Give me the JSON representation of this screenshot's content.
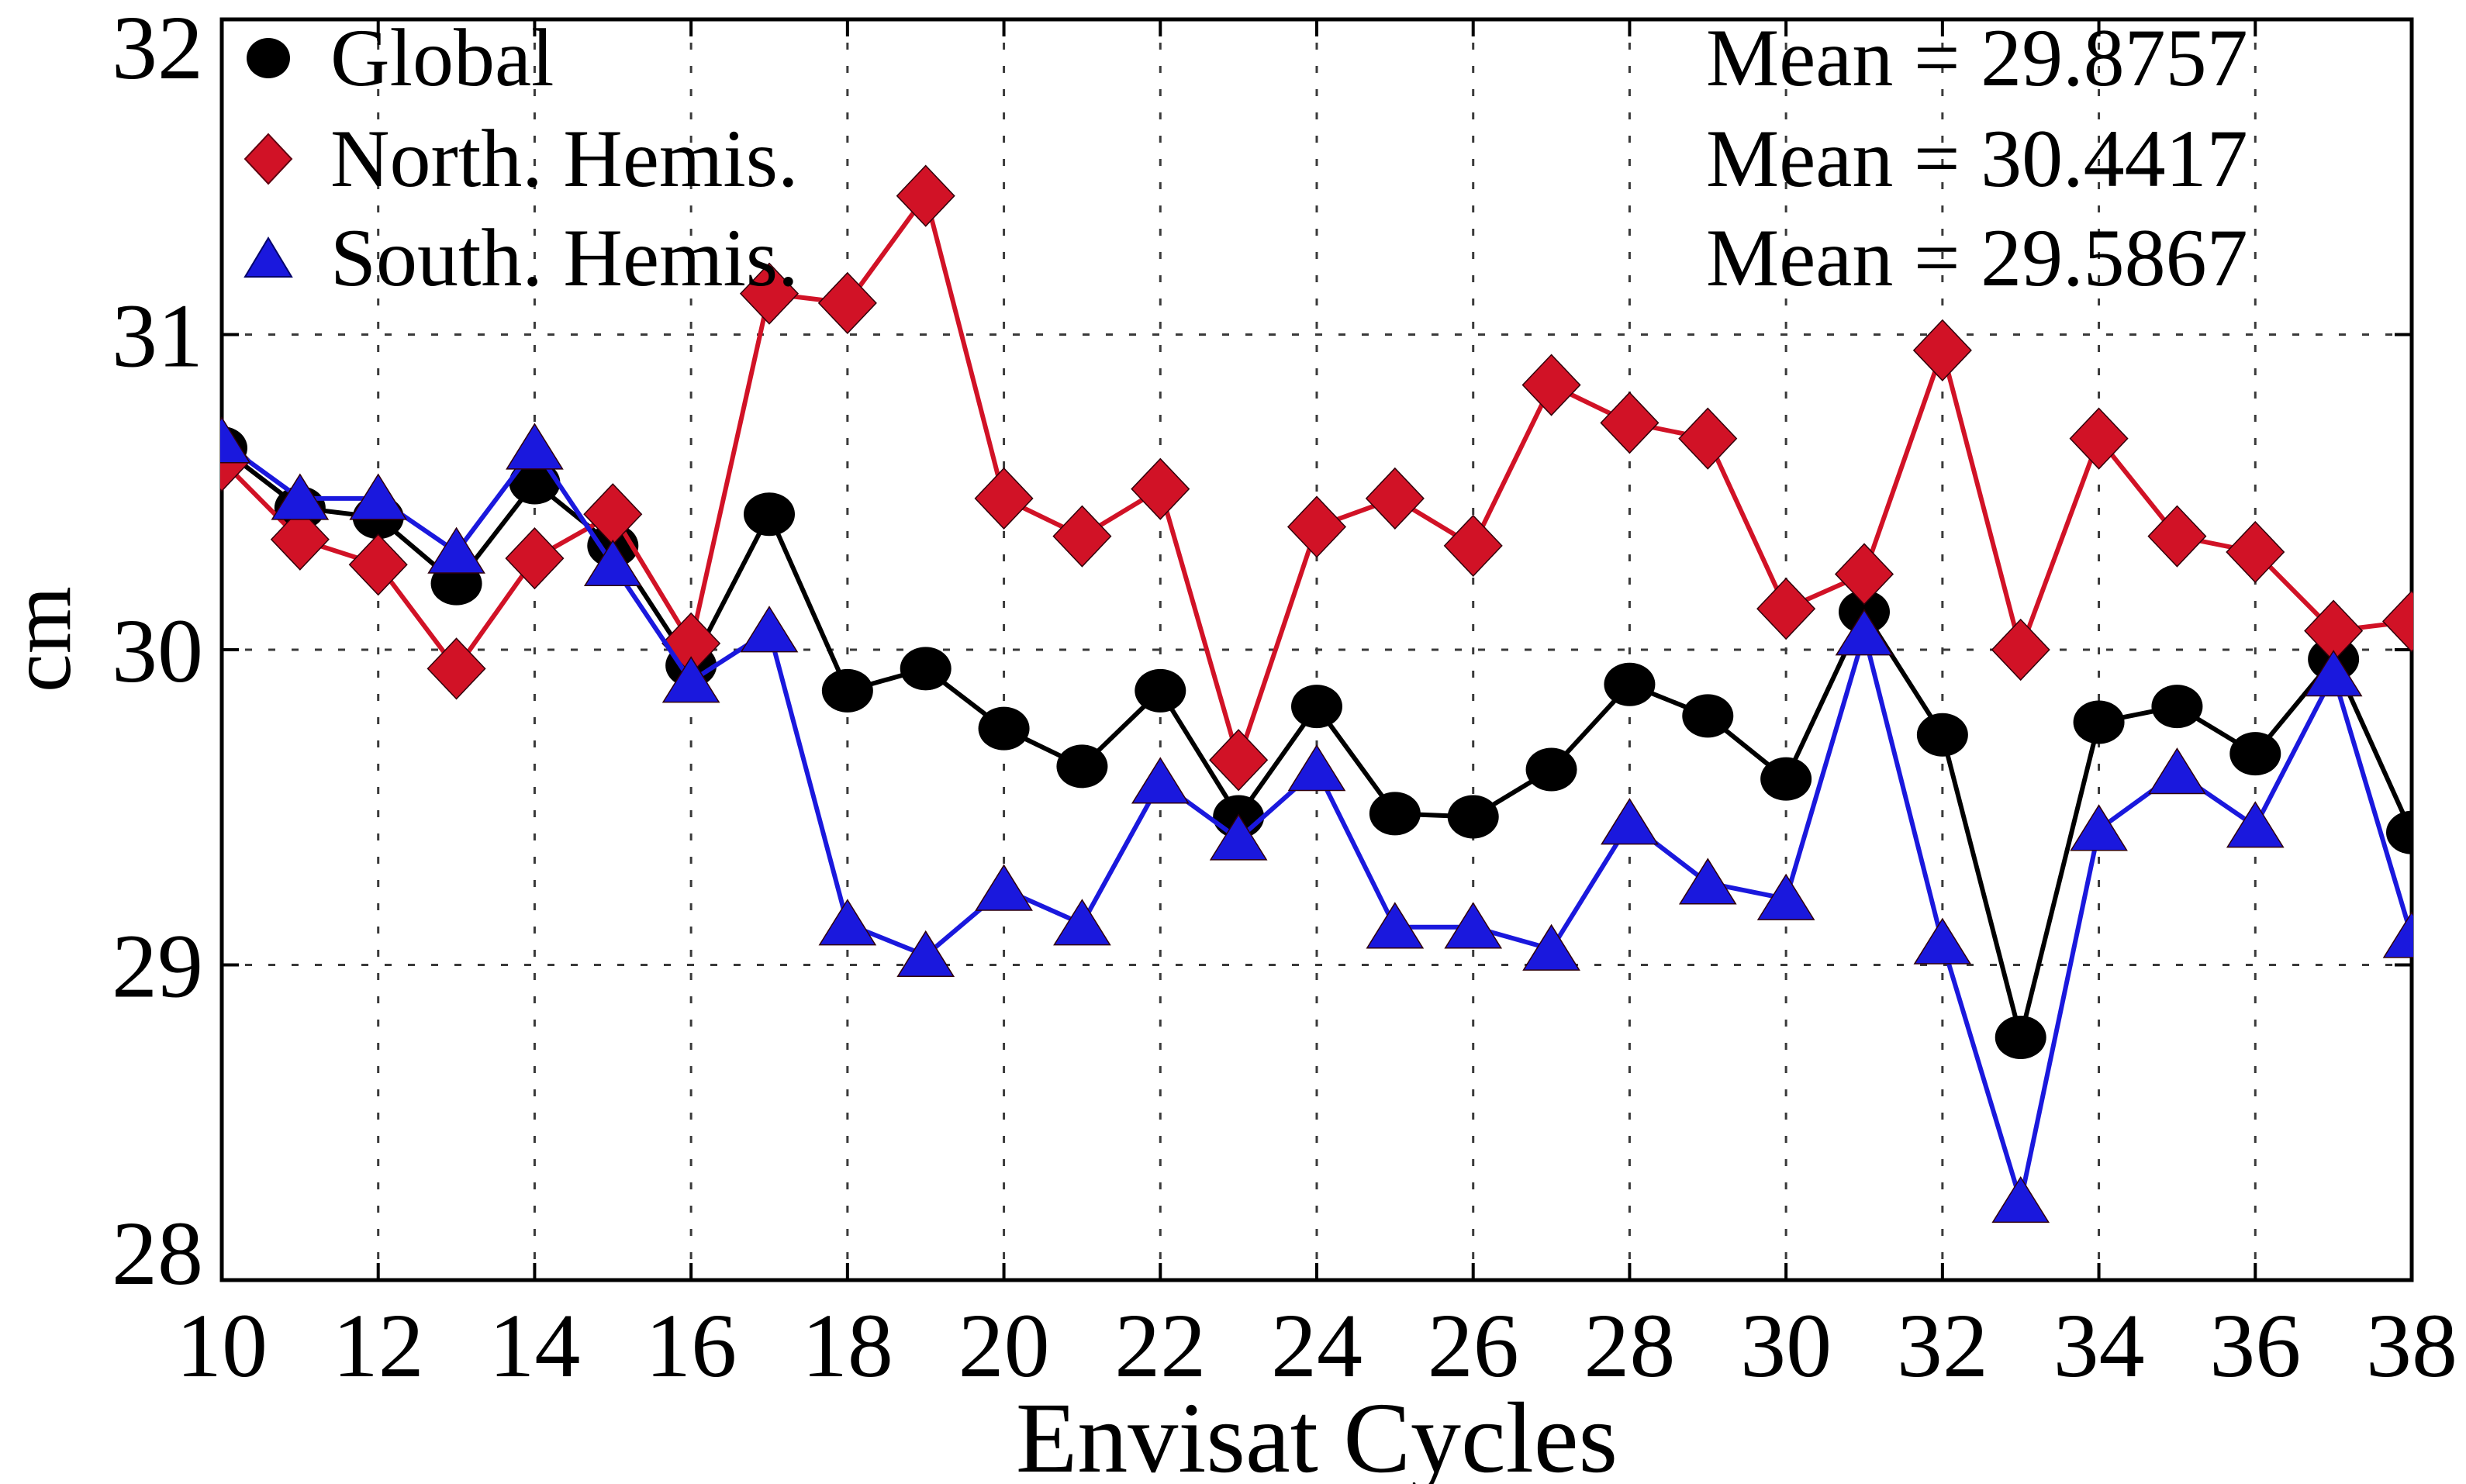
{
  "chart_data": {
    "type": "line",
    "title": "",
    "xlabel": "Envisat Cycles",
    "ylabel": "cm",
    "xlim": [
      10,
      38
    ],
    "ylim": [
      28,
      32
    ],
    "xticks": [
      10,
      12,
      14,
      16,
      18,
      20,
      22,
      24,
      26,
      28,
      30,
      32,
      34,
      36,
      38
    ],
    "yticks": [
      28,
      29,
      30,
      31,
      32
    ],
    "grid": "dashed-both-axes",
    "legend_position": "top-left",
    "x": [
      10,
      11,
      12,
      13,
      14,
      15,
      16,
      17,
      18,
      19,
      20,
      21,
      22,
      23,
      24,
      25,
      26,
      27,
      28,
      29,
      30,
      31,
      32,
      33,
      34,
      35,
      36,
      37,
      38
    ],
    "series": [
      {
        "name": "Global",
        "marker": "circle",
        "color": "#000000",
        "values": [
          30.64,
          30.45,
          30.42,
          30.21,
          30.53,
          30.33,
          29.95,
          30.43,
          29.87,
          29.94,
          29.75,
          29.63,
          29.87,
          29.47,
          29.82,
          29.48,
          29.47,
          29.62,
          29.89,
          29.79,
          29.59,
          30.12,
          29.73,
          28.77,
          29.77,
          29.82,
          29.67,
          29.97,
          29.42
        ]
      },
      {
        "name": "North. Hemis.",
        "marker": "diamond",
        "color": "#d11226",
        "values": [
          30.6,
          30.35,
          30.27,
          29.94,
          30.29,
          30.43,
          30.02,
          31.13,
          31.1,
          31.44,
          30.48,
          30.36,
          30.51,
          29.65,
          30.39,
          30.48,
          30.33,
          30.84,
          30.72,
          30.67,
          30.13,
          30.24,
          30.95,
          30.0,
          30.67,
          30.36,
          30.31,
          30.06,
          30.09
        ]
      },
      {
        "name": "South. Hemis.",
        "marker": "triangle-up",
        "color": "#1a18dd",
        "values": [
          30.66,
          30.48,
          30.48,
          30.31,
          30.64,
          30.27,
          29.9,
          30.06,
          29.13,
          29.03,
          29.24,
          29.13,
          29.58,
          29.4,
          29.62,
          29.12,
          29.12,
          29.05,
          29.45,
          29.26,
          29.21,
          30.05,
          29.07,
          28.25,
          29.43,
          29.61,
          29.44,
          29.92,
          29.09
        ]
      }
    ],
    "annotations": [
      {
        "text": "Mean = 29.8757",
        "series": "Global"
      },
      {
        "text": "Mean = 30.4417",
        "series": "North. Hemis."
      },
      {
        "text": "Mean = 29.5867",
        "series": "South. Hemis."
      }
    ]
  }
}
